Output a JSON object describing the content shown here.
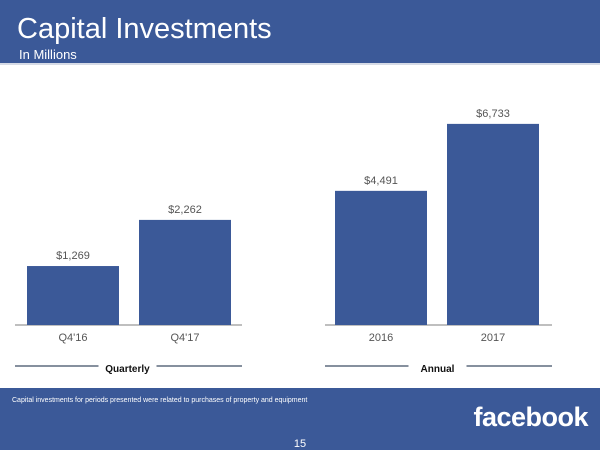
{
  "header": {
    "title": "Capital Investments",
    "subtitle": "In Millions"
  },
  "footer": {
    "note": "Capital investments for periods presented were related to purchases of property and equipment",
    "logo": "facebook",
    "page_number": "15"
  },
  "colors": {
    "bar": "#3b5998",
    "axis": "#7f7f7f",
    "group_line": "#5f6b7f"
  },
  "chart_data": [
    {
      "type": "bar",
      "group_label": "Quarterly",
      "categories": [
        "Q4'16",
        "Q4'17"
      ],
      "values": [
        1269,
        2262
      ],
      "labels": [
        "$1,269",
        "$2,262"
      ],
      "ylim": [
        0,
        4950
      ]
    },
    {
      "type": "bar",
      "group_label": "Annual",
      "categories": [
        "2016",
        "2017"
      ],
      "values": [
        4491,
        6733
      ],
      "labels": [
        "$4,491",
        "$6,733"
      ],
      "ylim": [
        0,
        7700
      ]
    }
  ]
}
